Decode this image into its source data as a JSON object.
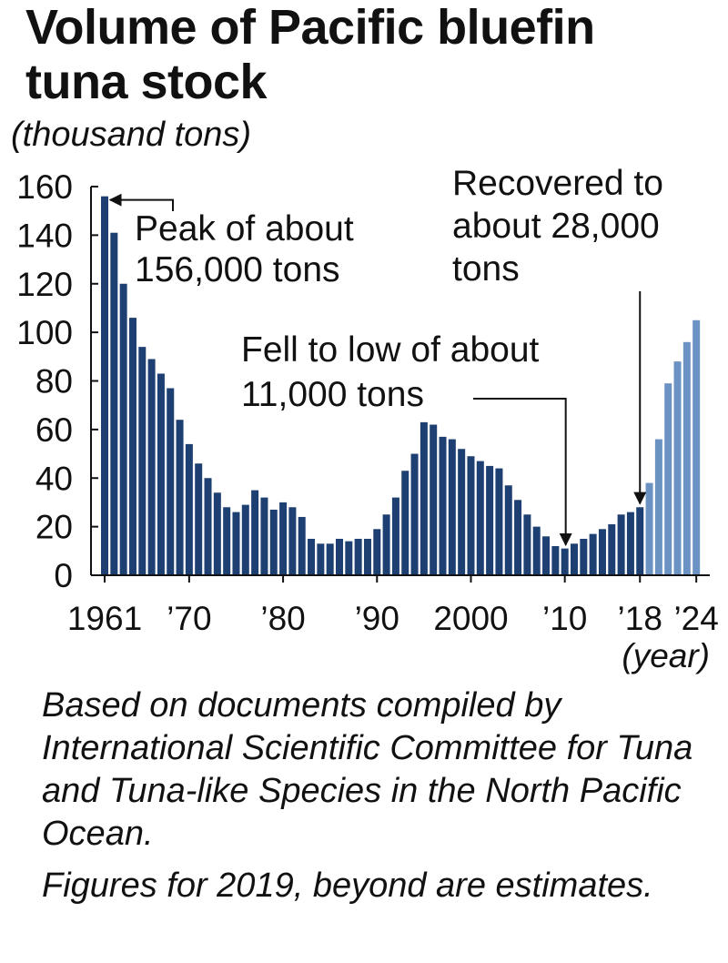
{
  "chart_data": {
    "type": "bar",
    "title": "Volume of Pacific bluefin tuna stock",
    "ylabel": "(thousand tons)",
    "xlabel": "(year)",
    "ylim": [
      0,
      160
    ],
    "yticks": [
      "0",
      "20",
      "40",
      "60",
      "80",
      "100",
      "120",
      "140",
      "160"
    ],
    "xtick_labels": [
      {
        "year": 1961,
        "label": "1961"
      },
      {
        "year": 1970,
        "label": "’70"
      },
      {
        "year": 1980,
        "label": "’80"
      },
      {
        "year": 1990,
        "label": "’90"
      },
      {
        "year": 2000,
        "label": "2000"
      },
      {
        "year": 2010,
        "label": "’10"
      },
      {
        "year": 2018,
        "label": "’18"
      },
      {
        "year": 2024,
        "label": "’24"
      }
    ],
    "x": [
      1961,
      1962,
      1963,
      1964,
      1965,
      1966,
      1967,
      1968,
      1969,
      1970,
      1971,
      1972,
      1973,
      1974,
      1975,
      1976,
      1977,
      1978,
      1979,
      1980,
      1981,
      1982,
      1983,
      1984,
      1985,
      1986,
      1987,
      1988,
      1989,
      1990,
      1991,
      1992,
      1993,
      1994,
      1995,
      1996,
      1997,
      1998,
      1999,
      2000,
      2001,
      2002,
      2003,
      2004,
      2005,
      2006,
      2007,
      2008,
      2009,
      2010,
      2011,
      2012,
      2013,
      2014,
      2015,
      2016,
      2017,
      2018,
      2019,
      2020,
      2021,
      2022,
      2023,
      2024
    ],
    "values": [
      156,
      141,
      120,
      106,
      94,
      89,
      83,
      77,
      64,
      54,
      46,
      40,
      34,
      28,
      26,
      29,
      35,
      32,
      27,
      30,
      28,
      24,
      15,
      13,
      13,
      15,
      14,
      15,
      15,
      19,
      25,
      32,
      43,
      50,
      63,
      62,
      57,
      56,
      52,
      49,
      47,
      45,
      44,
      37,
      31,
      25,
      20,
      16,
      12,
      11,
      13,
      15,
      17,
      19,
      21,
      25,
      26,
      28,
      38,
      56,
      79,
      88,
      96,
      105
    ],
    "estimate_from_year": 2019,
    "colors": {
      "actual": "#1d3f72",
      "estimate": "#6a93c4",
      "axis": "#111111"
    },
    "annotations": [
      {
        "text_lines": [
          "Peak of about",
          "156,000 tons"
        ],
        "year": 1961,
        "value": 156
      },
      {
        "text_lines": [
          "Fell to low of about",
          "11,000 tons"
        ],
        "year": 2010,
        "value": 11
      },
      {
        "text_lines": [
          "Recovered to",
          "about 28,000",
          "tons"
        ],
        "year": 2018,
        "value": 28
      }
    ]
  },
  "header": {
    "title_line1": "Volume of Pacific bluefin",
    "title_line2": "tuna stock",
    "unit": "(thousand tons)"
  },
  "footer": {
    "source": "Based on documents compiled by International Scientific Committee for Tuna and Tuna-like Species in the North Pacific Ocean.",
    "note": "Figures for 2019, beyond are estimates."
  }
}
